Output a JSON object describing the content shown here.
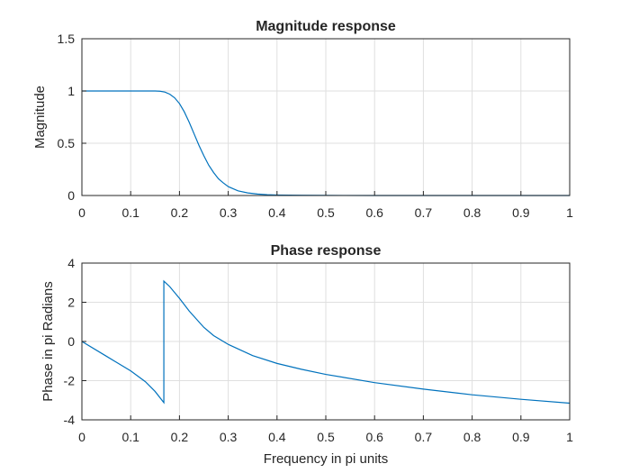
{
  "chart_data": [
    {
      "type": "line",
      "title": "Magnitude response",
      "xlabel": "",
      "ylabel": "Magnitude",
      "xlim": [
        0,
        1
      ],
      "ylim": [
        0,
        1.5
      ],
      "xticks": [
        "0",
        "0.1",
        "0.2",
        "0.3",
        "0.4",
        "0.5",
        "0.6",
        "0.7",
        "0.8",
        "0.9",
        "1"
      ],
      "yticks": [
        "0",
        "0.5",
        "1",
        "1.5"
      ],
      "grid": true,
      "line_color": "#0072bd",
      "series": [
        {
          "x": [
            0,
            0.05,
            0.1,
            0.15,
            0.16,
            0.17,
            0.18,
            0.19,
            0.2,
            0.21,
            0.22,
            0.23,
            0.24,
            0.25,
            0.26,
            0.27,
            0.28,
            0.29,
            0.3,
            0.32,
            0.34,
            0.36,
            0.38,
            0.4,
            0.45,
            0.5,
            0.6,
            0.7,
            0.8,
            0.9,
            1
          ],
          "y": [
            1,
            1,
            1,
            1,
            0.998,
            0.99,
            0.97,
            0.935,
            0.88,
            0.8,
            0.7,
            0.59,
            0.48,
            0.38,
            0.29,
            0.22,
            0.16,
            0.12,
            0.085,
            0.045,
            0.025,
            0.014,
            0.008,
            0.005,
            0.002,
            0.001,
            0,
            0,
            0,
            0,
            0
          ]
        }
      ]
    },
    {
      "type": "line",
      "title": "Phase response",
      "xlabel": "Frequency in pi units",
      "ylabel": "Phase in pi Radians",
      "xlim": [
        0,
        1
      ],
      "ylim": [
        -4,
        4
      ],
      "xticks": [
        "0",
        "0.1",
        "0.2",
        "0.3",
        "0.4",
        "0.5",
        "0.6",
        "0.7",
        "0.8",
        "0.9",
        "1"
      ],
      "yticks": [
        "-4",
        "-2",
        "0",
        "2",
        "4"
      ],
      "grid": true,
      "line_color": "#0072bd",
      "series": [
        {
          "x": [
            0,
            0.05,
            0.1,
            0.13,
            0.15,
            0.168,
            0.168,
            0.18,
            0.2,
            0.22,
            0.25,
            0.27,
            0.3,
            0.35,
            0.4,
            0.45,
            0.5,
            0.6,
            0.7,
            0.8,
            0.9,
            1
          ],
          "y": [
            0,
            -0.75,
            -1.5,
            -2.05,
            -2.55,
            -3.12,
            3.08,
            2.8,
            2.2,
            1.55,
            0.72,
            0.3,
            -0.15,
            -0.72,
            -1.12,
            -1.42,
            -1.68,
            -2.1,
            -2.43,
            -2.72,
            -2.95,
            -3.15
          ]
        }
      ]
    }
  ]
}
